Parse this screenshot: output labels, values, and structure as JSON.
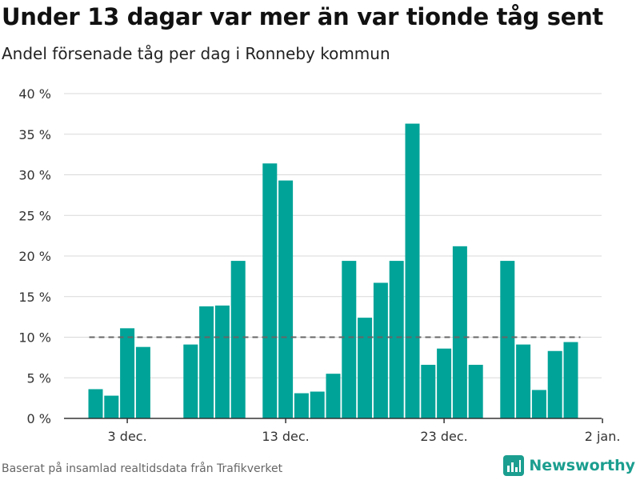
{
  "title": "Under 13 dagar var mer än var tionde tåg sent",
  "subtitle": "Andel försenade tåg per dag i Ronneby kommun",
  "source": "Baserat på insamlad realtidsdata från Trafikverket",
  "brand": "Newsworthy",
  "colors": {
    "bar": "#00a398",
    "reference_line": "#666666",
    "grid": "#d9d9d9",
    "brand": "#1b9e8f"
  },
  "chart_data": {
    "type": "bar",
    "x_type": "date",
    "x": [
      "2023-12-01",
      "2023-12-02",
      "2023-12-03",
      "2023-12-04",
      "2023-12-05",
      "2023-12-06",
      "2023-12-07",
      "2023-12-08",
      "2023-12-09",
      "2023-12-10",
      "2023-12-11",
      "2023-12-12",
      "2023-12-13",
      "2023-12-14",
      "2023-12-15",
      "2023-12-16",
      "2023-12-17",
      "2023-12-18",
      "2023-12-19",
      "2023-12-20",
      "2023-12-21",
      "2023-12-22",
      "2023-12-23",
      "2023-12-24",
      "2023-12-25",
      "2023-12-26",
      "2023-12-27",
      "2023-12-28",
      "2023-12-29",
      "2023-12-30",
      "2023-12-31"
    ],
    "values": [
      3.6,
      2.8,
      11.1,
      8.8,
      null,
      null,
      9.1,
      13.8,
      13.9,
      19.4,
      null,
      31.4,
      29.3,
      3.1,
      3.3,
      5.5,
      19.4,
      12.4,
      16.7,
      19.4,
      36.3,
      6.6,
      8.6,
      21.2,
      6.6,
      null,
      19.4,
      9.1,
      3.5,
      8.3,
      9.4
    ],
    "reference_line": 10,
    "ylim": [
      0,
      40
    ],
    "y_ticks": [
      0,
      5,
      10,
      15,
      20,
      25,
      30,
      35,
      40
    ],
    "y_tick_labels": [
      "0 %",
      "5 %",
      "10 %",
      "15 %",
      "20 %",
      "25 %",
      "30 %",
      "35 %",
      "40 %"
    ],
    "x_ticks": [
      "2023-12-03",
      "2023-12-13",
      "2023-12-23",
      "2024-01-02"
    ],
    "x_tick_labels": [
      "3 dec.",
      "13 dec.",
      "23 dec.",
      "2 jan."
    ],
    "xlabel": "",
    "ylabel": "",
    "grid": true,
    "legend": "none"
  }
}
